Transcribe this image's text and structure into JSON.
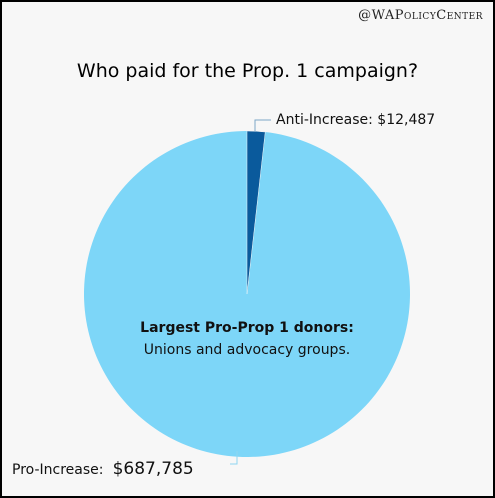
{
  "watermark": "@WAPolicyCenter",
  "chart_data": {
    "type": "pie",
    "title": "Who paid for the Prop. 1 campaign?",
    "slices": [
      {
        "name": "Anti-Increase",
        "value": 12487,
        "label": "Anti-Increase: $12,487",
        "color": "#0a5a9c"
      },
      {
        "name": "Pro-Increase",
        "value": 687785,
        "label_prefix": "Pro-Increase:",
        "label_value": "$687,785",
        "color": "#7dd6f8"
      }
    ],
    "annotation": {
      "line1": "Largest Pro-Prop 1 donors:",
      "line2": "Unions and advocacy groups."
    },
    "legend": "none"
  }
}
